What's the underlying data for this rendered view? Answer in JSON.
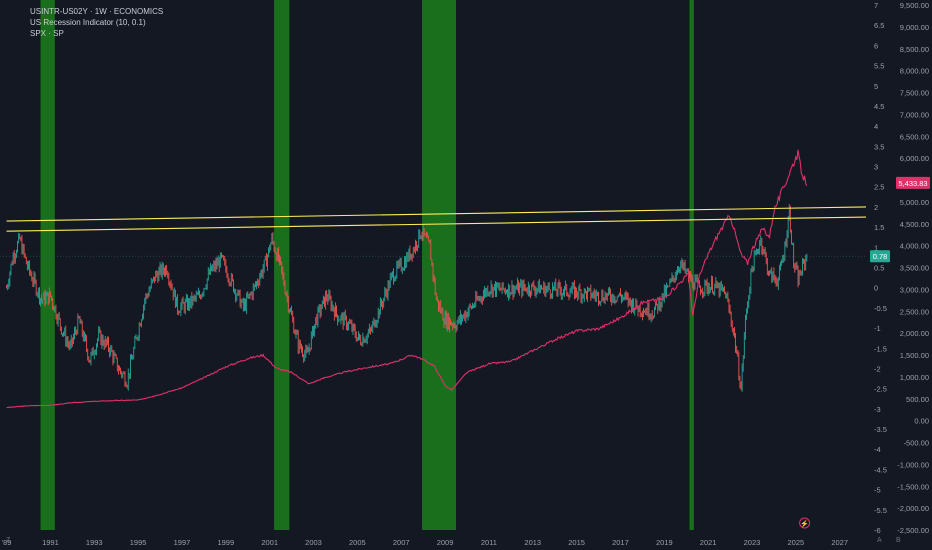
{
  "legend": {
    "line1": "USINTR-US02Y · 1W · ECONOMICS",
    "line2": "US Recession Indicator (10, 0.1)",
    "line3": "SPX · SP"
  },
  "corner_left": "Z",
  "corner_right_a": "A",
  "corner_right_b": "B",
  "colors": {
    "background": "#141823",
    "spread": "#26a69a",
    "spread_down": "#ef5350",
    "spx": "#e0306a",
    "recession": "#1a7f1a",
    "resistance": "#ffee58"
  },
  "chart_data": {
    "type": "line",
    "x_axis": {
      "ticks": [
        "'89",
        "1991",
        "1993",
        "1995",
        "1997",
        "1999",
        "2001",
        "2003",
        "2005",
        "2007",
        "2009",
        "2011",
        "2013",
        "2015",
        "2017",
        "2019",
        "2021",
        "2023",
        "2025",
        "2027"
      ],
      "range": [
        1988.7,
        2028.2
      ]
    },
    "y_axis_spread": {
      "ticks": [
        "7",
        "6.5",
        "6",
        "5.5",
        "5",
        "4.5",
        "4",
        "3.5",
        "3",
        "2.5",
        "2",
        "1.5",
        "1",
        "0.5",
        "0",
        "-0.5",
        "-1",
        "-1.5",
        "-2",
        "-2.5",
        "-3",
        "-3.5",
        "-4",
        "-4.5",
        "-5",
        "-5.5",
        "-6"
      ],
      "range": [
        -6,
        7
      ]
    },
    "y_axis_spx": {
      "ticks": [
        "9,500.00",
        "9,000.00",
        "8,500.00",
        "8,000.00",
        "7,500.00",
        "7,000.00",
        "6,500.00",
        "6,000.00",
        "5,500.00",
        "5,000.00",
        "4,500.00",
        "4,000.00",
        "3,500.00",
        "3,000.00",
        "2,500.00",
        "2,000.00",
        "1,500.00",
        "1,000.00",
        "500.00",
        "0.00",
        "-500.00",
        "-1,000.00",
        "-1,500.00",
        "-2,000.00",
        "-2,500.00"
      ],
      "range": [
        -2500,
        9500
      ]
    },
    "badges": {
      "spx_last": "5,433.83",
      "spread_last": "0.78"
    },
    "recession_periods": [
      [
        1990.55,
        1991.2
      ],
      [
        2001.2,
        2001.9
      ],
      [
        2007.95,
        2009.5
      ],
      [
        2020.15,
        2020.35
      ]
    ],
    "resistance_lines": [
      {
        "from": [
          1989.0,
          1.65
        ],
        "to": [
          2028.2,
          2.0
        ]
      },
      {
        "from": [
          1989.0,
          1.4
        ],
        "to": [
          2028.2,
          1.75
        ]
      }
    ],
    "series": [
      {
        "name": "USINTR-US02Y",
        "axis": "spread",
        "points": [
          [
            1989.0,
            0.0
          ],
          [
            1989.3,
            0.8
          ],
          [
            1989.6,
            1.2
          ],
          [
            1989.9,
            0.6
          ],
          [
            1990.2,
            0.2
          ],
          [
            1990.6,
            -0.3
          ],
          [
            1991.0,
            -0.2
          ],
          [
            1991.5,
            -1.0
          ],
          [
            1991.9,
            -1.5
          ],
          [
            1992.3,
            -0.8
          ],
          [
            1992.8,
            -1.8
          ],
          [
            1993.2,
            -1.2
          ],
          [
            1993.7,
            -1.5
          ],
          [
            1994.1,
            -2.0
          ],
          [
            1994.5,
            -2.3
          ],
          [
            1994.9,
            -1.3
          ],
          [
            1995.3,
            -0.3
          ],
          [
            1995.8,
            0.3
          ],
          [
            1996.3,
            0.5
          ],
          [
            1996.8,
            -0.5
          ],
          [
            1997.3,
            -0.4
          ],
          [
            1997.8,
            -0.2
          ],
          [
            1998.3,
            0.4
          ],
          [
            1998.8,
            0.7
          ],
          [
            1999.3,
            0.1
          ],
          [
            1999.8,
            -0.5
          ],
          [
            2000.3,
            0.0
          ],
          [
            2000.8,
            0.6
          ],
          [
            2001.1,
            1.2
          ],
          [
            2001.5,
            0.5
          ],
          [
            2001.9,
            -0.5
          ],
          [
            2002.3,
            -1.4
          ],
          [
            2002.7,
            -1.7
          ],
          [
            2003.1,
            -0.8
          ],
          [
            2003.6,
            -0.2
          ],
          [
            2004.1,
            -0.7
          ],
          [
            2004.6,
            -0.9
          ],
          [
            2005.1,
            -1.3
          ],
          [
            2005.6,
            -1.1
          ],
          [
            2006.1,
            -0.4
          ],
          [
            2006.6,
            0.3
          ],
          [
            2007.1,
            0.6
          ],
          [
            2007.6,
            1.0
          ],
          [
            2007.9,
            1.4
          ],
          [
            2008.3,
            1.0
          ],
          [
            2008.6,
            -0.3
          ],
          [
            2009.0,
            -0.8
          ],
          [
            2009.5,
            -0.9
          ],
          [
            2010.0,
            -0.6
          ],
          [
            2010.5,
            -0.3
          ],
          [
            2011.0,
            0.0
          ],
          [
            2011.6,
            -0.05
          ],
          [
            2012.3,
            -0.02
          ],
          [
            2013.0,
            0.0
          ],
          [
            2014.0,
            -0.05
          ],
          [
            2015.0,
            -0.1
          ],
          [
            2016.0,
            -0.2
          ],
          [
            2017.0,
            -0.2
          ],
          [
            2017.8,
            -0.5
          ],
          [
            2018.5,
            -0.6
          ],
          [
            2019.2,
            0.0
          ],
          [
            2019.7,
            0.6
          ],
          [
            2020.2,
            0.2
          ],
          [
            2020.6,
            0.0
          ],
          [
            2021.2,
            0.05
          ],
          [
            2021.8,
            -0.15
          ],
          [
            2022.2,
            -1.2
          ],
          [
            2022.5,
            -2.5
          ],
          [
            2022.7,
            -0.8
          ],
          [
            2023.0,
            0.5
          ],
          [
            2023.4,
            1.2
          ],
          [
            2023.8,
            0.3
          ],
          [
            2024.2,
            0.2
          ],
          [
            2024.5,
            1.0
          ],
          [
            2024.7,
            1.9
          ],
          [
            2024.9,
            0.6
          ],
          [
            2025.1,
            0.2
          ],
          [
            2025.3,
            0.5
          ],
          [
            2025.5,
            0.78
          ]
        ]
      },
      {
        "name": "SPX",
        "axis": "spx",
        "points": [
          [
            1989.0,
            300
          ],
          [
            1990.0,
            340
          ],
          [
            1991.0,
            350
          ],
          [
            1992.0,
            410
          ],
          [
            1993.0,
            440
          ],
          [
            1994.0,
            460
          ],
          [
            1995.0,
            470
          ],
          [
            1996.0,
            600
          ],
          [
            1997.0,
            750
          ],
          [
            1998.0,
            980
          ],
          [
            1999.0,
            1230
          ],
          [
            2000.0,
            1420
          ],
          [
            2000.7,
            1500
          ],
          [
            2001.3,
            1200
          ],
          [
            2002.0,
            1100
          ],
          [
            2002.8,
            840
          ],
          [
            2003.5,
            980
          ],
          [
            2004.5,
            1120
          ],
          [
            2005.5,
            1220
          ],
          [
            2006.5,
            1300
          ],
          [
            2007.5,
            1500
          ],
          [
            2008.0,
            1400
          ],
          [
            2008.5,
            1250
          ],
          [
            2009.0,
            800
          ],
          [
            2009.3,
            700
          ],
          [
            2010.0,
            1100
          ],
          [
            2011.0,
            1300
          ],
          [
            2012.0,
            1350
          ],
          [
            2013.0,
            1600
          ],
          [
            2014.0,
            1850
          ],
          [
            2015.0,
            2050
          ],
          [
            2016.0,
            2100
          ],
          [
            2017.0,
            2350
          ],
          [
            2018.0,
            2700
          ],
          [
            2019.0,
            2800
          ],
          [
            2019.8,
            3200
          ],
          [
            2020.1,
            3350
          ],
          [
            2020.3,
            2400
          ],
          [
            2020.6,
            3300
          ],
          [
            2021.0,
            3800
          ],
          [
            2021.5,
            4300
          ],
          [
            2022.0,
            4700
          ],
          [
            2022.5,
            3800
          ],
          [
            2022.8,
            3600
          ],
          [
            2023.0,
            3900
          ],
          [
            2023.5,
            4400
          ],
          [
            2023.8,
            4200
          ],
          [
            2024.0,
            4800
          ],
          [
            2024.5,
            5400
          ],
          [
            2024.9,
            5900
          ],
          [
            2025.1,
            6100
          ],
          [
            2025.3,
            5600
          ],
          [
            2025.5,
            5434
          ]
        ]
      }
    ]
  }
}
